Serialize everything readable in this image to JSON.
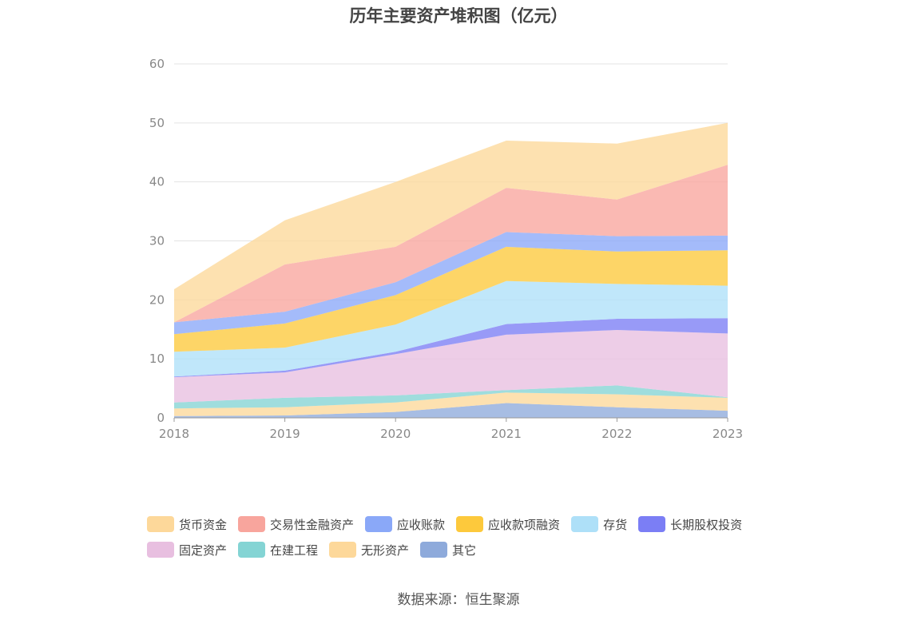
{
  "chart_data": {
    "type": "area",
    "stacked": true,
    "title": "历年主要资产堆积图（亿元）",
    "x": [
      "2018",
      "2019",
      "2020",
      "2021",
      "2022",
      "2023"
    ],
    "ylim": [
      0,
      60
    ],
    "yticks": [
      0,
      10,
      20,
      30,
      40,
      50,
      60
    ],
    "grid": true,
    "legend_position": "bottom",
    "series": [
      {
        "name": "其它",
        "color": "#8eaadb",
        "values": [
          0.3,
          0.4,
          1.0,
          2.5,
          1.8,
          1.2
        ]
      },
      {
        "name": "无形资产",
        "color": "#fdd89a",
        "values": [
          1.3,
          1.4,
          1.6,
          1.8,
          2.2,
          2.2
        ]
      },
      {
        "name": "在建工程",
        "color": "#84d4d4",
        "values": [
          1.0,
          1.6,
          1.2,
          0.4,
          1.5,
          0.1
        ]
      },
      {
        "name": "固定资产",
        "color": "#e8bfe0",
        "values": [
          4.3,
          4.3,
          7.0,
          9.4,
          9.4,
          10.8
        ]
      },
      {
        "name": "长期股权投资",
        "color": "#7b7ef5",
        "values": [
          0.1,
          0.3,
          0.4,
          1.8,
          1.9,
          2.6
        ]
      },
      {
        "name": "存货",
        "color": "#aee0f8",
        "values": [
          4.2,
          3.9,
          4.6,
          7.3,
          5.9,
          5.5
        ]
      },
      {
        "name": "应收款项融资",
        "color": "#fdc93c",
        "values": [
          3.0,
          4.1,
          5.0,
          5.8,
          5.5,
          6.0
        ]
      },
      {
        "name": "应收账款",
        "color": "#8aa8f8",
        "values": [
          2.0,
          2.0,
          2.2,
          2.5,
          2.6,
          2.5
        ]
      },
      {
        "name": "交易性金融资产",
        "color": "#f8a59d",
        "values": [
          0.0,
          8.0,
          6.0,
          7.5,
          6.2,
          12.0
        ]
      },
      {
        "name": "货币资金",
        "color": "#fdd89a",
        "values": [
          5.6,
          7.5,
          11.0,
          8.0,
          9.5,
          7.1
        ]
      }
    ]
  },
  "legend": {
    "row1": [
      "货币资金",
      "交易性金融资产",
      "应收账款",
      "应收款项融资",
      "存货",
      "长期股权投资"
    ],
    "row2": [
      "固定资产",
      "在建工程",
      "无形资产",
      "其它"
    ]
  },
  "source": "数据来源：恒生聚源"
}
